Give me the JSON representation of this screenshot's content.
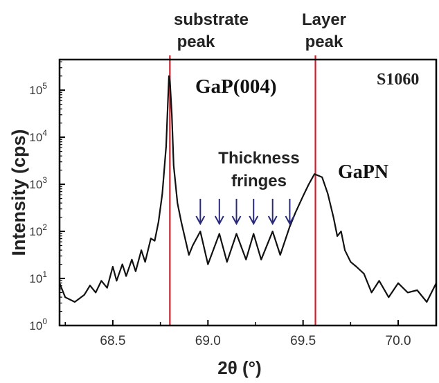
{
  "chart_data": {
    "type": "line",
    "title": "",
    "xlabel": "2θ (°)",
    "ylabel": "Intensity (cps)",
    "sample_label": "S1060",
    "xlim": [
      68.22,
      70.2
    ],
    "ylim_log10": [
      0,
      5.65
    ],
    "y_scale": "log",
    "x_ticks": [
      {
        "value": 68.5,
        "label": "68.5"
      },
      {
        "value": 69.0,
        "label": "69.0"
      },
      {
        "value": 69.5,
        "label": "69.5"
      },
      {
        "value": 70.0,
        "label": "70.0"
      }
    ],
    "y_ticks": [
      {
        "exp": 0,
        "base": "10",
        "sup": "0"
      },
      {
        "exp": 1,
        "base": "10",
        "sup": "1"
      },
      {
        "exp": 2,
        "base": "10",
        "sup": "2"
      },
      {
        "exp": 3,
        "base": "10",
        "sup": "3"
      },
      {
        "exp": 4,
        "base": "10",
        "sup": "4"
      },
      {
        "exp": 5,
        "base": "10",
        "sup": "5"
      }
    ],
    "vertical_lines": [
      {
        "x": 68.8,
        "color": "#cc1f2b",
        "label_lines": [
          "substrate",
          "peak"
        ]
      },
      {
        "x": 69.565,
        "color": "#cc1f2b",
        "label_lines": [
          "Layer",
          "peak"
        ]
      }
    ],
    "annotations": {
      "substrate_peak_name": "GaP(004)",
      "layer_peak_name": "GaPN",
      "fringes_label_lines": [
        "Thickness",
        "fringes"
      ],
      "fringe_arrow_x": [
        68.96,
        69.06,
        69.15,
        69.24,
        69.34,
        69.43
      ],
      "arrow_color": "#2b2a7a"
    },
    "series": [
      {
        "color": "#111111",
        "points": [
          [
            68.22,
            0.9
          ],
          [
            68.25,
            0.6
          ],
          [
            68.3,
            0.5
          ],
          [
            68.35,
            0.65
          ],
          [
            68.38,
            0.85
          ],
          [
            68.41,
            0.7
          ],
          [
            68.44,
            0.95
          ],
          [
            68.47,
            0.8
          ],
          [
            68.5,
            1.25
          ],
          [
            68.52,
            0.95
          ],
          [
            68.55,
            1.3
          ],
          [
            68.57,
            1.05
          ],
          [
            68.6,
            1.4
          ],
          [
            68.62,
            1.15
          ],
          [
            68.65,
            1.6
          ],
          [
            68.67,
            1.35
          ],
          [
            68.7,
            1.85
          ],
          [
            68.72,
            1.8
          ],
          [
            68.74,
            2.2
          ],
          [
            68.76,
            2.8
          ],
          [
            68.78,
            3.8
          ],
          [
            68.795,
            5.3
          ],
          [
            68.8,
            5.2
          ],
          [
            68.81,
            4.5
          ],
          [
            68.82,
            3.4
          ],
          [
            68.84,
            2.6
          ],
          [
            68.86,
            2.2
          ],
          [
            68.88,
            1.85
          ],
          [
            68.9,
            1.5
          ],
          [
            68.92,
            1.7
          ],
          [
            68.96,
            2.0
          ],
          [
            69.0,
            1.3
          ],
          [
            69.06,
            1.95
          ],
          [
            69.1,
            1.35
          ],
          [
            69.15,
            1.95
          ],
          [
            69.2,
            1.4
          ],
          [
            69.24,
            1.95
          ],
          [
            69.28,
            1.4
          ],
          [
            69.34,
            2.0
          ],
          [
            69.38,
            1.5
          ],
          [
            69.43,
            2.1
          ],
          [
            69.46,
            2.4
          ],
          [
            69.5,
            2.75
          ],
          [
            69.53,
            3.0
          ],
          [
            69.56,
            3.22
          ],
          [
            69.6,
            3.15
          ],
          [
            69.63,
            2.8
          ],
          [
            69.66,
            2.3
          ],
          [
            69.68,
            1.9
          ],
          [
            69.7,
            2.0
          ],
          [
            69.72,
            1.6
          ],
          [
            69.75,
            1.35
          ],
          [
            69.78,
            1.25
          ],
          [
            69.82,
            1.1
          ],
          [
            69.86,
            0.7
          ],
          [
            69.9,
            0.95
          ],
          [
            69.95,
            0.6
          ],
          [
            70.0,
            0.9
          ],
          [
            70.05,
            0.7
          ],
          [
            70.1,
            0.75
          ],
          [
            70.15,
            0.5
          ],
          [
            70.2,
            0.9
          ]
        ]
      }
    ],
    "grid": false,
    "legend": "none"
  }
}
